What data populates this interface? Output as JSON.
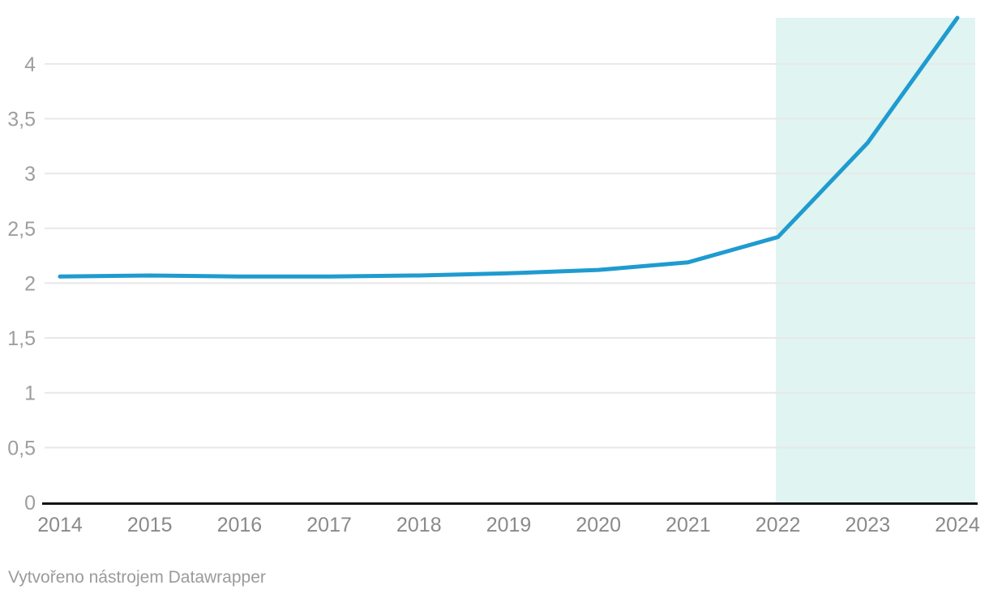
{
  "chart_data": {
    "type": "line",
    "title": "",
    "xlabel": "",
    "ylabel": "",
    "categories": [
      "2014",
      "2015",
      "2016",
      "2017",
      "2018",
      "2019",
      "2020",
      "2021",
      "2022",
      "2023",
      "2024"
    ],
    "values": [
      2.06,
      2.07,
      2.06,
      2.06,
      2.07,
      2.09,
      2.12,
      2.19,
      2.42,
      3.28,
      4.42
    ],
    "ylim": [
      0,
      4.42
    ],
    "y_ticks": [
      {
        "value": 0,
        "label": "0"
      },
      {
        "value": 0.5,
        "label": "0,5"
      },
      {
        "value": 1,
        "label": "1"
      },
      {
        "value": 1.5,
        "label": "1,5"
      },
      {
        "value": 2,
        "label": "2"
      },
      {
        "value": 2.5,
        "label": "2,5"
      },
      {
        "value": 3,
        "label": "3"
      },
      {
        "value": 3.5,
        "label": "3,5"
      },
      {
        "value": 4,
        "label": "4"
      }
    ],
    "grid": true,
    "legend": "none",
    "line_color": "#1f9bd0",
    "highlight": {
      "from": "2022",
      "to": "2024",
      "color": "#e0f4f1"
    }
  },
  "colors": {
    "background": "#ffffff",
    "line": "#1f9bd0",
    "highlight": "#e0f4f1",
    "gridline": "#e8e8e8",
    "axis": "#131313",
    "y_label": "#9e9e9e",
    "x_label": "#8a8a8a",
    "footer_text": "#9b9b9b"
  },
  "footer": {
    "attribution": "Vytvořeno nástrojem Datawrapper"
  }
}
